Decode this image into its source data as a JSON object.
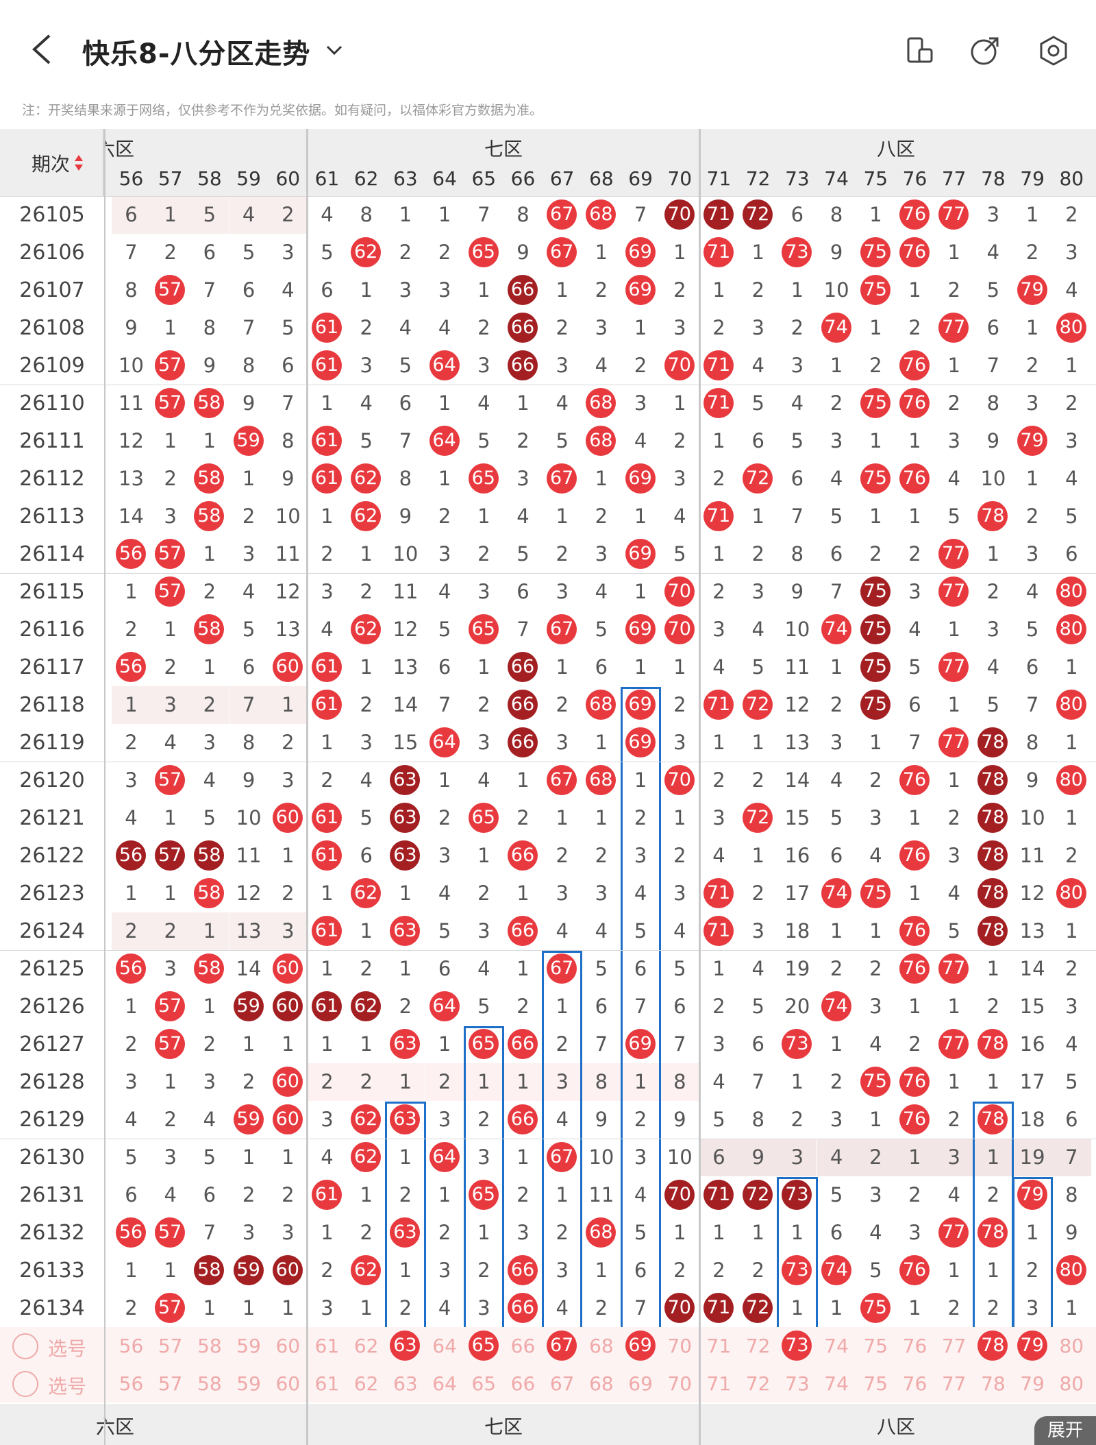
{
  "header": {
    "title": "快乐8-八分区走势",
    "icons": [
      "back-arrow-icon",
      "chevron-down-icon",
      "device-rotate-icon",
      "share-icon",
      "settings-icon"
    ]
  },
  "note": "注：开奖结果来源于网络，仅供参考不作为兑奖依据。如有疑问，以福体彩官方数据为准。",
  "table": {
    "issue_header": "期次",
    "zones": [
      "六区",
      "七区",
      "八区"
    ],
    "columns": [
      "56",
      "57",
      "58",
      "59",
      "60",
      "61",
      "62",
      "63",
      "64",
      "65",
      "66",
      "67",
      "68",
      "69",
      "70",
      "71",
      "72",
      "73",
      "74",
      "75",
      "76",
      "77",
      "78",
      "79",
      "80"
    ],
    "rows": [
      {
        "issue": "26105",
        "cells": [
          "6",
          "1",
          "5",
          "4",
          "2",
          "4",
          "8",
          "1",
          "1",
          "7",
          "8",
          "r67",
          "r68",
          "7",
          "d70",
          "d71",
          "d72",
          "6",
          "8",
          "1",
          "r76",
          "r77",
          "3",
          "1",
          "2"
        ]
      },
      {
        "issue": "26106",
        "cells": [
          "7",
          "2",
          "6",
          "5",
          "3",
          "5",
          "r62",
          "2",
          "2",
          "r65",
          "9",
          "r67",
          "1",
          "r69",
          "1",
          "r71",
          "1",
          "r73",
          "9",
          "r75",
          "r76",
          "1",
          "4",
          "2",
          "3"
        ]
      },
      {
        "issue": "26107",
        "cells": [
          "8",
          "r57",
          "7",
          "6",
          "4",
          "6",
          "1",
          "3",
          "3",
          "1",
          "d66",
          "1",
          "2",
          "r69",
          "2",
          "1",
          "2",
          "1",
          "10",
          "r75",
          "1",
          "2",
          "5",
          "r79",
          "4"
        ]
      },
      {
        "issue": "26108",
        "cells": [
          "9",
          "1",
          "8",
          "7",
          "5",
          "r61",
          "2",
          "4",
          "4",
          "2",
          "d66",
          "2",
          "3",
          "1",
          "3",
          "2",
          "3",
          "2",
          "r74",
          "1",
          "2",
          "r77",
          "6",
          "1",
          "r80"
        ]
      },
      {
        "issue": "26109",
        "cells": [
          "10",
          "r57",
          "9",
          "8",
          "6",
          "r61",
          "3",
          "5",
          "r64",
          "3",
          "d66",
          "3",
          "4",
          "2",
          "r70",
          "r71",
          "4",
          "3",
          "1",
          "2",
          "r76",
          "1",
          "7",
          "2",
          "1"
        ]
      },
      {
        "issue": "26110",
        "cells": [
          "11",
          "r57",
          "r58",
          "9",
          "7",
          "1",
          "4",
          "6",
          "1",
          "4",
          "1",
          "4",
          "r68",
          "3",
          "1",
          "r71",
          "5",
          "4",
          "2",
          "r75",
          "r76",
          "2",
          "8",
          "3",
          "2"
        ]
      },
      {
        "issue": "26111",
        "cells": [
          "12",
          "1",
          "1",
          "r59",
          "8",
          "r61",
          "5",
          "7",
          "r64",
          "5",
          "2",
          "5",
          "r68",
          "4",
          "2",
          "1",
          "6",
          "5",
          "3",
          "1",
          "1",
          "3",
          "9",
          "r79",
          "3"
        ]
      },
      {
        "issue": "26112",
        "cells": [
          "13",
          "2",
          "r58",
          "1",
          "9",
          "r61",
          "r62",
          "8",
          "1",
          "r65",
          "3",
          "r67",
          "1",
          "r69",
          "3",
          "2",
          "r72",
          "6",
          "4",
          "r75",
          "r76",
          "4",
          "10",
          "1",
          "4"
        ]
      },
      {
        "issue": "26113",
        "cells": [
          "14",
          "3",
          "r58",
          "2",
          "10",
          "1",
          "r62",
          "9",
          "2",
          "1",
          "4",
          "1",
          "2",
          "1",
          "4",
          "r71",
          "1",
          "7",
          "5",
          "1",
          "1",
          "5",
          "r78",
          "2",
          "5"
        ]
      },
      {
        "issue": "26114",
        "cells": [
          "r56",
          "r57",
          "1",
          "3",
          "11",
          "2",
          "1",
          "10",
          "3",
          "2",
          "5",
          "2",
          "3",
          "r69",
          "5",
          "1",
          "2",
          "8",
          "6",
          "2",
          "2",
          "r77",
          "1",
          "3",
          "6"
        ]
      },
      {
        "issue": "26115",
        "cells": [
          "1",
          "r57",
          "2",
          "4",
          "12",
          "3",
          "2",
          "11",
          "4",
          "3",
          "6",
          "3",
          "4",
          "1",
          "r70",
          "2",
          "3",
          "9",
          "7",
          "d75",
          "3",
          "r77",
          "2",
          "4",
          "r80"
        ]
      },
      {
        "issue": "26116",
        "cells": [
          "2",
          "1",
          "r58",
          "5",
          "13",
          "4",
          "r62",
          "12",
          "5",
          "r65",
          "7",
          "r67",
          "5",
          "r69",
          "r70",
          "3",
          "4",
          "10",
          "r74",
          "d75",
          "4",
          "1",
          "3",
          "5",
          "r80"
        ]
      },
      {
        "issue": "26117",
        "cells": [
          "r56",
          "2",
          "1",
          "6",
          "r60",
          "r61",
          "1",
          "13",
          "6",
          "1",
          "d66",
          "1",
          "6",
          "1",
          "1",
          "4",
          "5",
          "11",
          "1",
          "d75",
          "5",
          "r77",
          "4",
          "6",
          "1"
        ]
      },
      {
        "issue": "26118",
        "cells": [
          "1",
          "3",
          "2",
          "7",
          "1",
          "r61",
          "2",
          "14",
          "7",
          "2",
          "d66",
          "2",
          "r68",
          "r69",
          "2",
          "r71",
          "r72",
          "12",
          "2",
          "d75",
          "6",
          "1",
          "5",
          "7",
          "r80"
        ]
      },
      {
        "issue": "26119",
        "cells": [
          "2",
          "4",
          "3",
          "8",
          "2",
          "1",
          "3",
          "15",
          "r64",
          "3",
          "d66",
          "3",
          "1",
          "r69",
          "3",
          "1",
          "1",
          "13",
          "3",
          "1",
          "7",
          "r77",
          "d78",
          "8",
          "1"
        ]
      },
      {
        "issue": "26120",
        "cells": [
          "3",
          "r57",
          "4",
          "9",
          "3",
          "2",
          "4",
          "d63",
          "1",
          "4",
          "1",
          "r67",
          "r68",
          "1",
          "r70",
          "2",
          "2",
          "14",
          "4",
          "2",
          "r76",
          "1",
          "d78",
          "9",
          "r80"
        ]
      },
      {
        "issue": "26121",
        "cells": [
          "4",
          "1",
          "5",
          "10",
          "r60",
          "r61",
          "5",
          "d63",
          "2",
          "r65",
          "2",
          "1",
          "1",
          "2",
          "1",
          "3",
          "r72",
          "15",
          "5",
          "3",
          "1",
          "2",
          "d78",
          "10",
          "1"
        ]
      },
      {
        "issue": "26122",
        "cells": [
          "d56",
          "d57",
          "d58",
          "11",
          "1",
          "r61",
          "6",
          "d63",
          "3",
          "1",
          "r66",
          "2",
          "2",
          "3",
          "2",
          "4",
          "1",
          "16",
          "6",
          "4",
          "r76",
          "3",
          "d78",
          "11",
          "2"
        ]
      },
      {
        "issue": "26123",
        "cells": [
          "1",
          "1",
          "r58",
          "12",
          "2",
          "1",
          "r62",
          "1",
          "4",
          "2",
          "1",
          "3",
          "3",
          "4",
          "3",
          "r71",
          "2",
          "17",
          "r74",
          "r75",
          "1",
          "4",
          "d78",
          "12",
          "r80"
        ]
      },
      {
        "issue": "26124",
        "cells": [
          "2",
          "2",
          "1",
          "13",
          "3",
          "r61",
          "1",
          "r63",
          "5",
          "3",
          "r66",
          "4",
          "4",
          "5",
          "4",
          "r71",
          "3",
          "18",
          "1",
          "1",
          "r76",
          "5",
          "d78",
          "13",
          "1"
        ]
      },
      {
        "issue": "26125",
        "cells": [
          "r56",
          "3",
          "r58",
          "14",
          "r60",
          "1",
          "2",
          "1",
          "6",
          "4",
          "1",
          "r67",
          "5",
          "6",
          "5",
          "1",
          "4",
          "19",
          "2",
          "2",
          "r76",
          "r77",
          "1",
          "14",
          "2"
        ]
      },
      {
        "issue": "26126",
        "cells": [
          "1",
          "r57",
          "1",
          "d59",
          "d60",
          "d61",
          "d62",
          "2",
          "r64",
          "5",
          "2",
          "1",
          "6",
          "7",
          "6",
          "2",
          "5",
          "20",
          "r74",
          "3",
          "1",
          "1",
          "2",
          "15",
          "3"
        ]
      },
      {
        "issue": "26127",
        "cells": [
          "2",
          "r57",
          "2",
          "1",
          "1",
          "1",
          "1",
          "r63",
          "1",
          "r65",
          "r66",
          "2",
          "7",
          "r69",
          "7",
          "3",
          "6",
          "r73",
          "1",
          "4",
          "2",
          "r77",
          "r78",
          "16",
          "4"
        ]
      },
      {
        "issue": "26128",
        "cells": [
          "3",
          "1",
          "3",
          "2",
          "r60",
          "2",
          "2",
          "1",
          "2",
          "1",
          "1",
          "3",
          "8",
          "1",
          "8",
          "4",
          "7",
          "1",
          "2",
          "r75",
          "r76",
          "1",
          "1",
          "17",
          "5"
        ]
      },
      {
        "issue": "26129",
        "cells": [
          "4",
          "2",
          "4",
          "r59",
          "r60",
          "3",
          "r62",
          "r63",
          "3",
          "2",
          "r66",
          "4",
          "9",
          "2",
          "9",
          "5",
          "8",
          "2",
          "3",
          "1",
          "r76",
          "2",
          "r78",
          "18",
          "6"
        ]
      },
      {
        "issue": "26130",
        "cells": [
          "5",
          "3",
          "5",
          "1",
          "1",
          "4",
          "r62",
          "1",
          "r64",
          "3",
          "1",
          "r67",
          "10",
          "3",
          "10",
          "6",
          "9",
          "3",
          "4",
          "2",
          "1",
          "3",
          "1",
          "19",
          "7"
        ]
      },
      {
        "issue": "26131",
        "cells": [
          "6",
          "4",
          "6",
          "2",
          "2",
          "r61",
          "1",
          "2",
          "1",
          "r65",
          "2",
          "1",
          "11",
          "4",
          "d70",
          "d71",
          "d72",
          "d73",
          "5",
          "3",
          "2",
          "4",
          "2",
          "r79",
          "8"
        ]
      },
      {
        "issue": "26132",
        "cells": [
          "r56",
          "r57",
          "7",
          "3",
          "3",
          "1",
          "2",
          "r63",
          "2",
          "1",
          "3",
          "2",
          "r68",
          "5",
          "1",
          "1",
          "1",
          "1",
          "6",
          "4",
          "3",
          "r77",
          "r78",
          "1",
          "9"
        ]
      },
      {
        "issue": "26133",
        "cells": [
          "1",
          "1",
          "d58",
          "d59",
          "d60",
          "2",
          "r62",
          "1",
          "3",
          "2",
          "r66",
          "3",
          "1",
          "6",
          "2",
          "2",
          "2",
          "r73",
          "r74",
          "5",
          "r76",
          "1",
          "1",
          "2",
          "r80"
        ]
      },
      {
        "issue": "26134",
        "cells": [
          "2",
          "r57",
          "1",
          "1",
          "1",
          "3",
          "1",
          "2",
          "4",
          "3",
          "r66",
          "4",
          "2",
          "7",
          "d70",
          "d71",
          "d72",
          "1",
          "1",
          "r75",
          "1",
          "2",
          "2",
          "3",
          "1"
        ]
      }
    ],
    "select_label": "选号",
    "select_row1_picked": [
      "63",
      "65",
      "67",
      "69",
      "73",
      "78",
      "79"
    ],
    "expand_label": "展开"
  },
  "colors": {
    "ball_red": "#e8393e",
    "ball_dark": "#a31f22",
    "box_blue": "#1e6fc8"
  }
}
